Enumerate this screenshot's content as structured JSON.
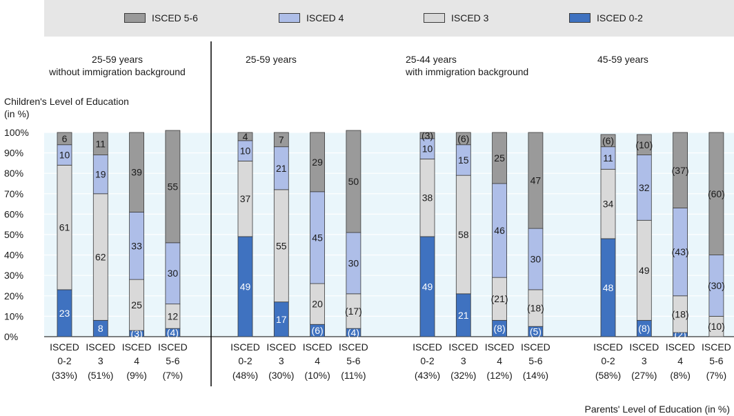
{
  "legend": [
    {
      "label": "ISCED 5-6",
      "color": "#9a9a9a"
    },
    {
      "label": "ISCED 4",
      "color": "#aebee8"
    },
    {
      "label": "ISCED 3",
      "color": "#d9d9d9"
    },
    {
      "label": "ISCED 0-2",
      "color": "#3f72c0"
    }
  ],
  "panels": [
    {
      "title_line1": "25-59 years",
      "title_line2": "without immigration background"
    },
    {
      "title_line1": "25-59 years",
      "title_line2": ""
    },
    {
      "title_line1": "25-44 years",
      "title_line2": "with immigration background"
    },
    {
      "title_line1": "45-59 years",
      "title_line2": ""
    }
  ],
  "y_axis_title_line1": "Children's Level of Education",
  "y_axis_title_line2": "(in %)",
  "x_axis_title": "Parents' Level of Education (in %)",
  "chart_data": {
    "type": "bar",
    "stacked": true,
    "ylim": [
      0,
      100
    ],
    "yticks": [
      "0%",
      "10%",
      "20%",
      "30%",
      "40%",
      "50%",
      "60%",
      "70%",
      "80%",
      "90%",
      "100%"
    ],
    "series_order_bottom_to_top": [
      "ISCED 0-2",
      "ISCED 3",
      "ISCED 4",
      "ISCED 5-6"
    ],
    "colors": {
      "ISCED 0-2": "#3f72c0",
      "ISCED 3": "#d9d9d9",
      "ISCED 4": "#aebee8",
      "ISCED 5-6": "#9a9a9a"
    },
    "groups": [
      {
        "bars": [
          {
            "cat1": "ISCED",
            "cat2": "0-2",
            "share": "(33%)",
            "values": [
              23,
              61,
              10,
              6
            ],
            "labels": [
              "23",
              "61",
              "10",
              "6"
            ]
          },
          {
            "cat1": "ISCED",
            "cat2": "3",
            "share": "(51%)",
            "values": [
              8,
              62,
              19,
              11
            ],
            "labels": [
              "8",
              "62",
              "19",
              "11"
            ]
          },
          {
            "cat1": "ISCED",
            "cat2": "4",
            "share": "(9%)",
            "values": [
              3,
              25,
              33,
              39
            ],
            "labels": [
              "(3)",
              "25",
              "33",
              "39"
            ]
          },
          {
            "cat1": "ISCED",
            "cat2": "5-6",
            "share": "(7%)",
            "values": [
              4,
              12,
              30,
              55
            ],
            "labels": [
              "(4)",
              "12",
              "30",
              "55"
            ]
          }
        ]
      },
      {
        "bars": [
          {
            "cat1": "ISCED",
            "cat2": "0-2",
            "share": "(48%)",
            "values": [
              49,
              37,
              10,
              4
            ],
            "labels": [
              "49",
              "37",
              "10",
              "4"
            ]
          },
          {
            "cat1": "ISCED",
            "cat2": "3",
            "share": "(30%)",
            "values": [
              17,
              55,
              21,
              7
            ],
            "labels": [
              "17",
              "55",
              "21",
              "7"
            ]
          },
          {
            "cat1": "ISCED",
            "cat2": "4",
            "share": "(10%)",
            "values": [
              6,
              20,
              45,
              29
            ],
            "labels": [
              "(6)",
              "20",
              "45",
              "29"
            ]
          },
          {
            "cat1": "ISCED",
            "cat2": "5-6",
            "share": "(11%)",
            "values": [
              4,
              17,
              30,
              50
            ],
            "labels": [
              "(4)",
              "(17)",
              "30",
              "50"
            ]
          }
        ]
      },
      {
        "bars": [
          {
            "cat1": "ISCED",
            "cat2": "0-2",
            "share": "(43%)",
            "values": [
              49,
              38,
              10,
              3
            ],
            "labels": [
              "49",
              "38",
              "10",
              "(3)"
            ]
          },
          {
            "cat1": "ISCED",
            "cat2": "3",
            "share": "(32%)",
            "values": [
              21,
              58,
              15,
              6
            ],
            "labels": [
              "21",
              "58",
              "15",
              "(6)"
            ]
          },
          {
            "cat1": "ISCED",
            "cat2": "4",
            "share": "(12%)",
            "values": [
              8,
              21,
              46,
              25
            ],
            "labels": [
              "(8)",
              "(21)",
              "46",
              "25"
            ]
          },
          {
            "cat1": "ISCED",
            "cat2": "5-6",
            "share": "(14%)",
            "values": [
              5,
              18,
              30,
              47
            ],
            "labels": [
              "(5)",
              "(18)",
              "30",
              "47"
            ]
          }
        ]
      },
      {
        "bars": [
          {
            "cat1": "ISCED",
            "cat2": "0-2",
            "share": "(58%)",
            "values": [
              48,
              34,
              11,
              6
            ],
            "labels": [
              "48",
              "34",
              "11",
              "(6)"
            ]
          },
          {
            "cat1": "ISCED",
            "cat2": "3",
            "share": "(27%)",
            "values": [
              8,
              49,
              32,
              10
            ],
            "labels": [
              "(8)",
              "49",
              "32",
              "(10)"
            ]
          },
          {
            "cat1": "ISCED",
            "cat2": "4",
            "share": "(8%)",
            "values": [
              2,
              18,
              43,
              37
            ],
            "labels": [
              "(2)",
              "(18)",
              "(43)",
              "(37)"
            ]
          },
          {
            "cat1": "ISCED",
            "cat2": "5-6",
            "share": "(7%)",
            "values": [
              0,
              10,
              30,
              60
            ],
            "labels": [
              "",
              "(10)",
              "(30)",
              "(60)"
            ]
          }
        ]
      }
    ]
  }
}
